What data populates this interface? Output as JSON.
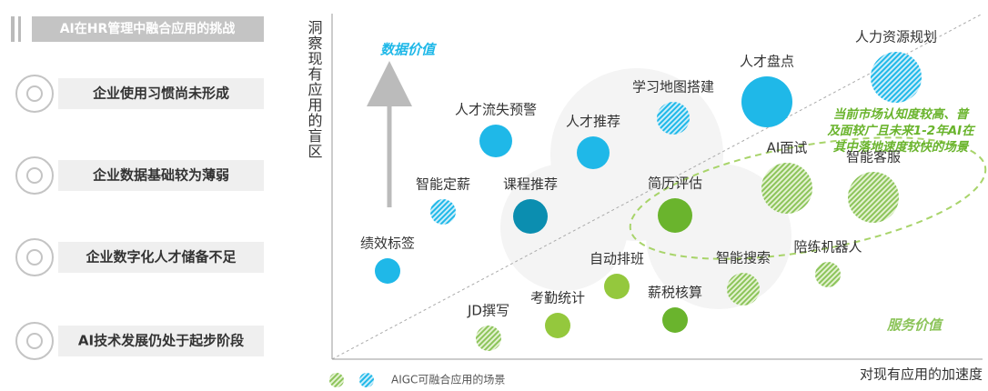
{
  "header": {
    "title": "AI在HR管理中融合应用的挑战"
  },
  "challenges": [
    "企业使用习惯尚未形成",
    "企业数据基础较为薄弱",
    "企业数字化人才储备不足",
    "AI技术发展仍处于起步阶段"
  ],
  "chart": {
    "y_axis_label": "洞察现有应用的盲区",
    "x_axis_label": "对现有应用的加速度",
    "top_left_label": "数据价值",
    "bottom_right_label": "服务价值",
    "annotation": [
      "当前市场认知度较高、普",
      "及面较广且未来1-2年AI在",
      "其中落地速度较快的场景"
    ],
    "legend": "AIGC可融合应用的场景",
    "nodes": [
      {
        "label": "人才流失预警"
      },
      {
        "label": "人才推荐"
      },
      {
        "label": "学习地图搭建"
      },
      {
        "label": "人才盘点"
      },
      {
        "label": "人力资源规划"
      },
      {
        "label": "智能定薪"
      },
      {
        "label": "课程推荐"
      },
      {
        "label": "绩效标签"
      },
      {
        "label": "简历评估"
      },
      {
        "label": "AI面试"
      },
      {
        "label": "智能客服"
      },
      {
        "label": "陪练机器人"
      },
      {
        "label": "智能搜索"
      },
      {
        "label": "自动排班"
      },
      {
        "label": "薪税核算"
      },
      {
        "label": "考勤统计"
      },
      {
        "label": "JD撰写"
      }
    ]
  }
}
